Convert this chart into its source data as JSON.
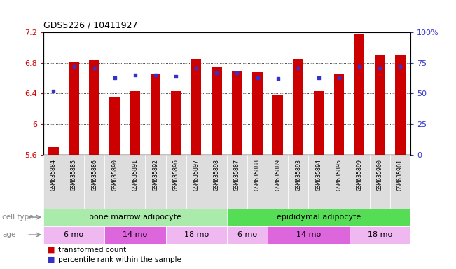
{
  "title": "GDS5226 / 10411927",
  "samples": [
    "GSM635884",
    "GSM635885",
    "GSM635886",
    "GSM635890",
    "GSM635891",
    "GSM635892",
    "GSM635896",
    "GSM635897",
    "GSM635898",
    "GSM635887",
    "GSM635888",
    "GSM635889",
    "GSM635893",
    "GSM635894",
    "GSM635895",
    "GSM635899",
    "GSM635900",
    "GSM635901"
  ],
  "transformed_count": [
    5.7,
    6.81,
    6.84,
    6.35,
    6.43,
    6.65,
    6.43,
    6.85,
    6.75,
    6.69,
    6.68,
    6.38,
    6.85,
    6.43,
    6.65,
    7.18,
    6.91,
    6.91
  ],
  "percentile_rank": [
    52,
    72,
    71,
    63,
    65,
    65,
    64,
    71,
    67,
    67,
    63,
    62,
    71,
    63,
    63,
    72,
    71,
    72
  ],
  "ylim_left": [
    5.6,
    7.2
  ],
  "ylim_right": [
    0,
    100
  ],
  "yticks_left": [
    5.6,
    6.0,
    6.4,
    6.8,
    7.2
  ],
  "yticks_right": [
    0,
    25,
    50,
    75,
    100
  ],
  "ytick_labels_left": [
    "5.6",
    "6",
    "6.4",
    "6.8",
    "7.2"
  ],
  "ytick_labels_right": [
    "0",
    "25",
    "50",
    "75",
    "100%"
  ],
  "bar_color": "#cc0000",
  "dot_color": "#3333cc",
  "bar_bottom": 5.6,
  "cell_type_groups": [
    {
      "label": "bone marrow adipocyte",
      "start": 0,
      "end": 9,
      "color": "#aaeaaa"
    },
    {
      "label": "epididymal adipocyte",
      "start": 9,
      "end": 18,
      "color": "#55dd55"
    }
  ],
  "age_groups": [
    {
      "label": "6 mo",
      "start": 0,
      "end": 3,
      "color": "#f0b8f0"
    },
    {
      "label": "14 mo",
      "start": 3,
      "end": 6,
      "color": "#dd66dd"
    },
    {
      "label": "18 mo",
      "start": 6,
      "end": 9,
      "color": "#f0b8f0"
    },
    {
      "label": "6 mo",
      "start": 9,
      "end": 11,
      "color": "#f0b8f0"
    },
    {
      "label": "14 mo",
      "start": 11,
      "end": 15,
      "color": "#dd66dd"
    },
    {
      "label": "18 mo",
      "start": 15,
      "end": 18,
      "color": "#f0b8f0"
    }
  ],
  "legend_bar_label": "transformed count",
  "legend_dot_label": "percentile rank within the sample",
  "cell_type_label": "cell type",
  "age_label": "age",
  "bg_color": "#ffffff",
  "tick_color_left": "#cc0000",
  "tick_color_right": "#3333cc",
  "bar_width": 0.5,
  "xtick_bg": "#dddddd"
}
